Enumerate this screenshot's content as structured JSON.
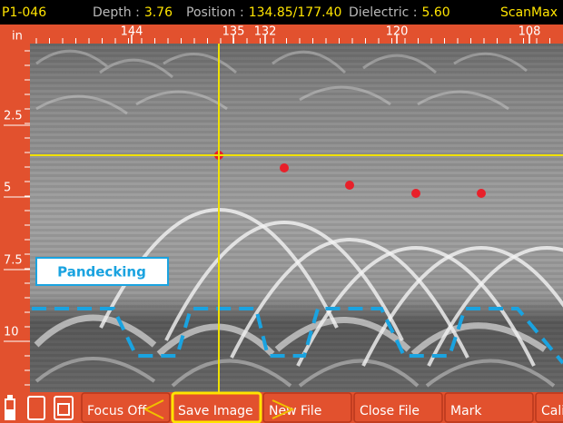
{
  "status": {
    "file": "P1-046",
    "depth": {
      "label": "Depth :",
      "value": "3.76"
    },
    "position": {
      "label": "Position :",
      "value": "134.85/177.40"
    },
    "dielectric": {
      "label": "Dielectric :",
      "value": "5.60"
    },
    "mode": "ScanMax"
  },
  "ruler": {
    "unit": "in",
    "top_labels": [
      "144",
      "135",
      "132",
      "120",
      "108"
    ],
    "depth_labels": [
      "2.5",
      "5",
      "7.5",
      "10"
    ]
  },
  "annotation": "Pandecking",
  "buttons": [
    "Focus Off",
    "Save Image",
    "New File",
    "Close File",
    "Mark",
    "Cali"
  ]
}
